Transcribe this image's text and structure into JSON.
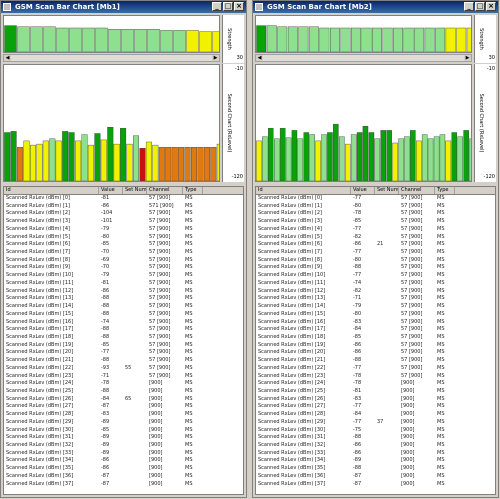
{
  "windows": [
    {
      "title": "GSM Scan Bar Chart [Mb1]",
      "top_axis": {
        "label": "Strength",
        "ticks": [
          "",
          "30"
        ]
      },
      "bottom_axis": {
        "label": "Second Chart (RxLevel)",
        "ticks": [
          "-10",
          "-120"
        ]
      },
      "top_chart_values": [
        22,
        21,
        21,
        21,
        20,
        20,
        20,
        20,
        19,
        19,
        19,
        19,
        18,
        18,
        18,
        17,
        17
      ],
      "bottom_chart_values": [
        -74,
        -73,
        -88,
        -82,
        -86,
        -85,
        -82,
        -80,
        -82,
        -73,
        -74,
        -82,
        -76,
        -86,
        -75,
        -81,
        -69,
        -85,
        -70,
        -85,
        -77,
        -89,
        -83,
        -86,
        -88,
        -88,
        -88,
        -88,
        -88,
        -88,
        -88,
        -88,
        -88,
        -85
      ],
      "table": {
        "columns": [
          "Id",
          "Value",
          "Set Number",
          "Channel",
          "Type"
        ],
        "rows": [
          [
            "Scanned RxLev (dBm) [0]",
            "-81",
            "",
            "57 [900]",
            "MS"
          ],
          [
            "Scanned RxLev (dBm) [1]",
            "-86",
            "",
            "571 [900]",
            "MS"
          ],
          [
            "Scanned RxLev (dBm) [2]",
            "-104",
            "",
            "57 [900]",
            "MS"
          ],
          [
            "Scanned RxLev (dBm) [3]",
            "-101",
            "",
            "57 [900]",
            "MS"
          ],
          [
            "Scanned RxLev (dBm) [4]",
            "-79",
            "",
            "57 [900]",
            "MS"
          ],
          [
            "Scanned RxLev (dBm) [5]",
            "-80",
            "",
            "57 [900]",
            "MS"
          ],
          [
            "Scanned RxLev (dBm) [6]",
            "-85",
            "",
            "57 [900]",
            "MS"
          ],
          [
            "Scanned RxLev (dBm) [7]",
            "-70",
            "",
            "57 [900]",
            "MS"
          ],
          [
            "Scanned RxLev (dBm) [8]",
            "-69",
            "",
            "57 [900]",
            "MS"
          ],
          [
            "Scanned RxLev (dBm) [9]",
            "-70",
            "",
            "57 [900]",
            "MS"
          ],
          [
            "Scanned RxLev (dBm) [10]",
            "-79",
            "",
            "57 [900]",
            "MS"
          ],
          [
            "Scanned RxLev (dBm) [11]",
            "-81",
            "",
            "57 [900]",
            "MS"
          ],
          [
            "Scanned RxLev (dBm) [12]",
            "-86",
            "",
            "57 [900]",
            "MS"
          ],
          [
            "Scanned RxLev (dBm) [13]",
            "-88",
            "",
            "57 [900]",
            "MS"
          ],
          [
            "Scanned RxLev (dBm) [14]",
            "-88",
            "",
            "57 [900]",
            "MS"
          ],
          [
            "Scanned RxLev (dBm) [15]",
            "-88",
            "",
            "57 [900]",
            "MS"
          ],
          [
            "Scanned RxLev (dBm) [16]",
            "-74",
            "",
            "57 [900]",
            "MS"
          ],
          [
            "Scanned RxLev (dBm) [17]",
            "-88",
            "",
            "57 [900]",
            "MS"
          ],
          [
            "Scanned RxLev (dBm) [18]",
            "-88",
            "",
            "57 [900]",
            "MS"
          ],
          [
            "Scanned RxLev (dBm) [19]",
            "-85",
            "",
            "57 [900]",
            "MS"
          ],
          [
            "Scanned RxLev (dBm) [20]",
            "-77",
            "",
            "57 [900]",
            "MS"
          ],
          [
            "Scanned RxLev (dBm) [21]",
            "-88",
            "",
            "57 [900]",
            "MS"
          ],
          [
            "Scanned RxLev (dBm) [22]",
            "-93",
            "55",
            "57 [900]",
            "MS"
          ],
          [
            "Scanned RxLev (dBm) [23]",
            "-71",
            "",
            "57 [900]",
            "MS"
          ],
          [
            "Scanned RxLev (dBm) [24]",
            "-78",
            "",
            "[900]",
            "MS"
          ],
          [
            "Scanned RxLev (dBm) [25]",
            "-88",
            "",
            "[900]",
            "MS"
          ],
          [
            "Scanned RxLev (dBm) [26]",
            "-84",
            "65",
            "[900]",
            "MS"
          ],
          [
            "Scanned RxLev (dBm) [27]",
            "-87",
            "",
            "[900]",
            "MS"
          ],
          [
            "Scanned RxLev (dBm) [28]",
            "-83",
            "",
            "[900]",
            "MS"
          ],
          [
            "Scanned RxLev (dBm) [29]",
            "-89",
            "",
            "[900]",
            "MS"
          ],
          [
            "Scanned RxLev (dBm) [30]",
            "-85",
            "",
            "[900]",
            "MS"
          ],
          [
            "Scanned RxLev (dBm) [31]",
            "-89",
            "",
            "[900]",
            "MS"
          ],
          [
            "Scanned RxLev (dBm) [32]",
            "-89",
            "",
            "[900]",
            "MS"
          ],
          [
            "Scanned RxLev (dBm) [33]",
            "-89",
            "",
            "[900]",
            "MS"
          ],
          [
            "Scanned RxLev (dBm) [34]",
            "-86",
            "",
            "[900]",
            "MS"
          ],
          [
            "Scanned RxLev (dBm) [35]",
            "-86",
            "",
            "[900]",
            "MS"
          ],
          [
            "Scanned RxLev (dBm) [36]",
            "-87",
            "",
            "[900]",
            "MS"
          ],
          [
            "Scanned RxLev (dBm) [37]",
            "-87",
            "",
            "[900]",
            "MS"
          ]
        ]
      }
    },
    {
      "title": "GSM Scan Bar Chart [Mb2]",
      "top_axis": {
        "label": "Strength",
        "ticks": [
          "",
          "30"
        ]
      },
      "bottom_axis": {
        "label": "Second Chart (RxLevel)",
        "ticks": [
          "-10",
          "-120"
        ]
      },
      "top_chart_values": [
        22,
        22,
        21,
        21,
        21,
        21,
        20,
        20,
        20,
        20,
        20,
        20,
        20,
        20,
        20,
        20,
        20,
        20,
        20,
        20,
        20
      ],
      "bottom_chart_values": [
        -82,
        -78,
        -70,
        -80,
        -70,
        -79,
        -72,
        -80,
        -74,
        -76,
        -82,
        -76,
        -74,
        -66,
        -78,
        -85,
        -76,
        -74,
        -68,
        -74,
        -80,
        -72,
        -72,
        -84,
        -80,
        -78,
        -72,
        -82,
        -76,
        -80,
        -78,
        -76,
        -82,
        -74,
        -78,
        -72,
        -80
      ],
      "table": {
        "columns": [
          "Id",
          "Value",
          "Set Number",
          "Channel",
          "Type"
        ],
        "rows": [
          [
            "Scanned RxLev (dBm) [0]",
            "-77",
            "",
            "57 [900]",
            "MS"
          ],
          [
            "Scanned RxLev (dBm) [1]",
            "-80",
            "",
            "57 [900]",
            "MS"
          ],
          [
            "Scanned RxLev (dBm) [2]",
            "-78",
            "",
            "57 [900]",
            "MS"
          ],
          [
            "Scanned RxLev (dBm) [3]",
            "-85",
            "",
            "57 [900]",
            "MS"
          ],
          [
            "Scanned RxLev (dBm) [4]",
            "-77",
            "",
            "57 [900]",
            "MS"
          ],
          [
            "Scanned RxLev (dBm) [5]",
            "-82",
            "",
            "57 [900]",
            "MS"
          ],
          [
            "Scanned RxLev (dBm) [6]",
            "-86",
            "21",
            "57 [900]",
            "MS"
          ],
          [
            "Scanned RxLev (dBm) [7]",
            "-77",
            "",
            "57 [900]",
            "MS"
          ],
          [
            "Scanned RxLev (dBm) [8]",
            "-80",
            "",
            "57 [900]",
            "MS"
          ],
          [
            "Scanned RxLev (dBm) [9]",
            "-88",
            "",
            "57 [900]",
            "MS"
          ],
          [
            "Scanned RxLev (dBm) [10]",
            "-77",
            "",
            "57 [900]",
            "MS"
          ],
          [
            "Scanned RxLev (dBm) [11]",
            "-74",
            "",
            "57 [900]",
            "MS"
          ],
          [
            "Scanned RxLev (dBm) [12]",
            "-82",
            "",
            "57 [900]",
            "MS"
          ],
          [
            "Scanned RxLev (dBm) [13]",
            "-71",
            "",
            "57 [900]",
            "MS"
          ],
          [
            "Scanned RxLev (dBm) [14]",
            "-79",
            "",
            "57 [900]",
            "MS"
          ],
          [
            "Scanned RxLev (dBm) [15]",
            "-80",
            "",
            "57 [900]",
            "MS"
          ],
          [
            "Scanned RxLev (dBm) [16]",
            "-83",
            "",
            "57 [900]",
            "MS"
          ],
          [
            "Scanned RxLev (dBm) [17]",
            "-84",
            "",
            "57 [900]",
            "MS"
          ],
          [
            "Scanned RxLev (dBm) [18]",
            "-85",
            "",
            "57 [900]",
            "MS"
          ],
          [
            "Scanned RxLev (dBm) [19]",
            "-86",
            "",
            "57 [900]",
            "MS"
          ],
          [
            "Scanned RxLev (dBm) [20]",
            "-86",
            "",
            "57 [900]",
            "MS"
          ],
          [
            "Scanned RxLev (dBm) [21]",
            "-88",
            "",
            "57 [900]",
            "MS"
          ],
          [
            "Scanned RxLev (dBm) [22]",
            "-77",
            "",
            "57 [900]",
            "MS"
          ],
          [
            "Scanned RxLev (dBm) [23]",
            "-78",
            "",
            "57 [900]",
            "MS"
          ],
          [
            "Scanned RxLev (dBm) [24]",
            "-78",
            "",
            "[900]",
            "MS"
          ],
          [
            "Scanned RxLev (dBm) [25]",
            "-81",
            "",
            "[900]",
            "MS"
          ],
          [
            "Scanned RxLev (dBm) [26]",
            "-83",
            "",
            "[900]",
            "MS"
          ],
          [
            "Scanned RxLev (dBm) [27]",
            "-77",
            "",
            "[900]",
            "MS"
          ],
          [
            "Scanned RxLev (dBm) [28]",
            "-84",
            "",
            "[900]",
            "MS"
          ],
          [
            "Scanned RxLev (dBm) [29]",
            "-77",
            "37",
            "[900]",
            "MS"
          ],
          [
            "Scanned RxLev (dBm) [30]",
            "-75",
            "",
            "[900]",
            "MS"
          ],
          [
            "Scanned RxLev (dBm) [31]",
            "-88",
            "",
            "[900]",
            "MS"
          ],
          [
            "Scanned RxLev (dBm) [32]",
            "-86",
            "",
            "[900]",
            "MS"
          ],
          [
            "Scanned RxLev (dBm) [33]",
            "-86",
            "",
            "[900]",
            "MS"
          ],
          [
            "Scanned RxLev (dBm) [34]",
            "-89",
            "",
            "[900]",
            "MS"
          ],
          [
            "Scanned RxLev (dBm) [35]",
            "-88",
            "",
            "[900]",
            "MS"
          ],
          [
            "Scanned RxLev (dBm) [36]",
            "-87",
            "",
            "[900]",
            "MS"
          ],
          [
            "Scanned RxLev (dBm) [37]",
            "-87",
            "",
            "[900]",
            "MS"
          ]
        ]
      }
    }
  ],
  "colors": {
    "strong_green": "#0aa20a",
    "light_green": "#8ee08e",
    "yellow": "#f2f200",
    "orange": "#e07a10",
    "red": "#c81010"
  },
  "icons": {
    "minimize": "minimize-icon",
    "maximize": "maximize-icon",
    "close": "close-icon",
    "scroll_left": "arrow-left-icon",
    "scroll_right": "arrow-right-icon"
  }
}
